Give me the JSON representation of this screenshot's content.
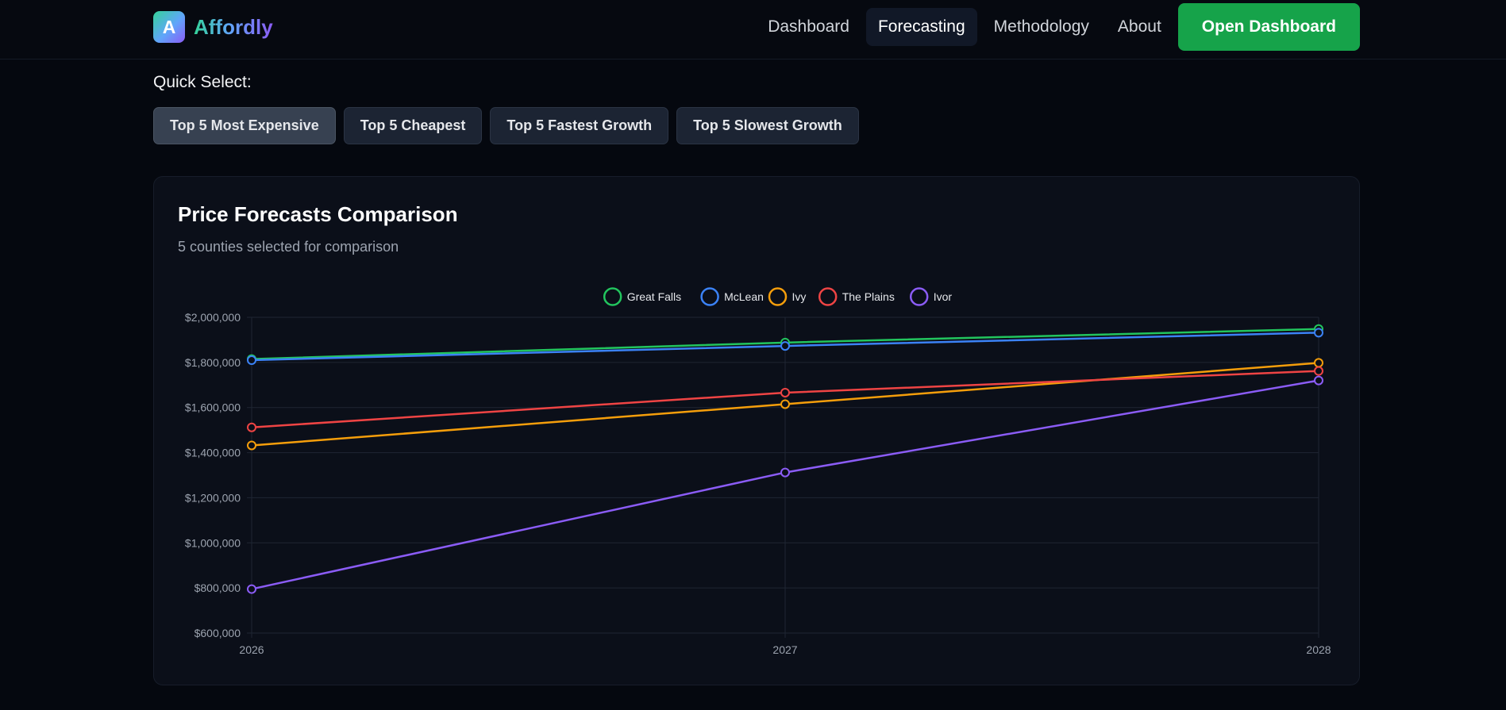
{
  "header": {
    "brand_letter": "A",
    "brand_name": "Affordly",
    "nav": [
      {
        "label": "Dashboard",
        "active": false
      },
      {
        "label": "Forecasting",
        "active": true
      },
      {
        "label": "Methodology",
        "active": false
      },
      {
        "label": "About",
        "active": false
      }
    ],
    "cta_label": "Open Dashboard"
  },
  "quick_select": {
    "label": "Quick Select:",
    "options": [
      {
        "label": "Top 5 Most Expensive",
        "active": true
      },
      {
        "label": "Top 5 Cheapest",
        "active": false
      },
      {
        "label": "Top 5 Fastest Growth",
        "active": false
      },
      {
        "label": "Top 5 Slowest Growth",
        "active": false
      }
    ]
  },
  "card": {
    "title": "Price Forecasts Comparison",
    "subtitle": "5 counties selected for comparison"
  },
  "colors": {
    "accent": "#16a34a",
    "background": "#05080f",
    "card": "#0b0f19"
  },
  "chart_data": {
    "type": "line",
    "title": "",
    "xlabel": "",
    "ylabel": "",
    "x": [
      "2026",
      "2027",
      "2028"
    ],
    "ylim": [
      600000,
      2000000
    ],
    "yticks": [
      600000,
      800000,
      1000000,
      1200000,
      1400000,
      1600000,
      1800000,
      2000000
    ],
    "ytick_labels": [
      "$600,000",
      "$800,000",
      "$1,000,000",
      "$1,200,000",
      "$1,400,000",
      "$1,600,000",
      "$1,800,000",
      "$2,000,000"
    ],
    "grid": true,
    "legend_position": "top-center",
    "series": [
      {
        "name": "Great Falls",
        "color": "#22c55e",
        "values": [
          1815000,
          1888000,
          1948000
        ]
      },
      {
        "name": "McLean",
        "color": "#3b82f6",
        "values": [
          1810000,
          1873000,
          1932000
        ]
      },
      {
        "name": "Ivy",
        "color": "#f59e0b",
        "values": [
          1432000,
          1615000,
          1798000
        ]
      },
      {
        "name": "The Plains",
        "color": "#ef4444",
        "values": [
          1512000,
          1666000,
          1762000
        ]
      },
      {
        "name": "Ivor",
        "color": "#8b5cf6",
        "values": [
          795000,
          1312000,
          1720000
        ]
      }
    ]
  }
}
